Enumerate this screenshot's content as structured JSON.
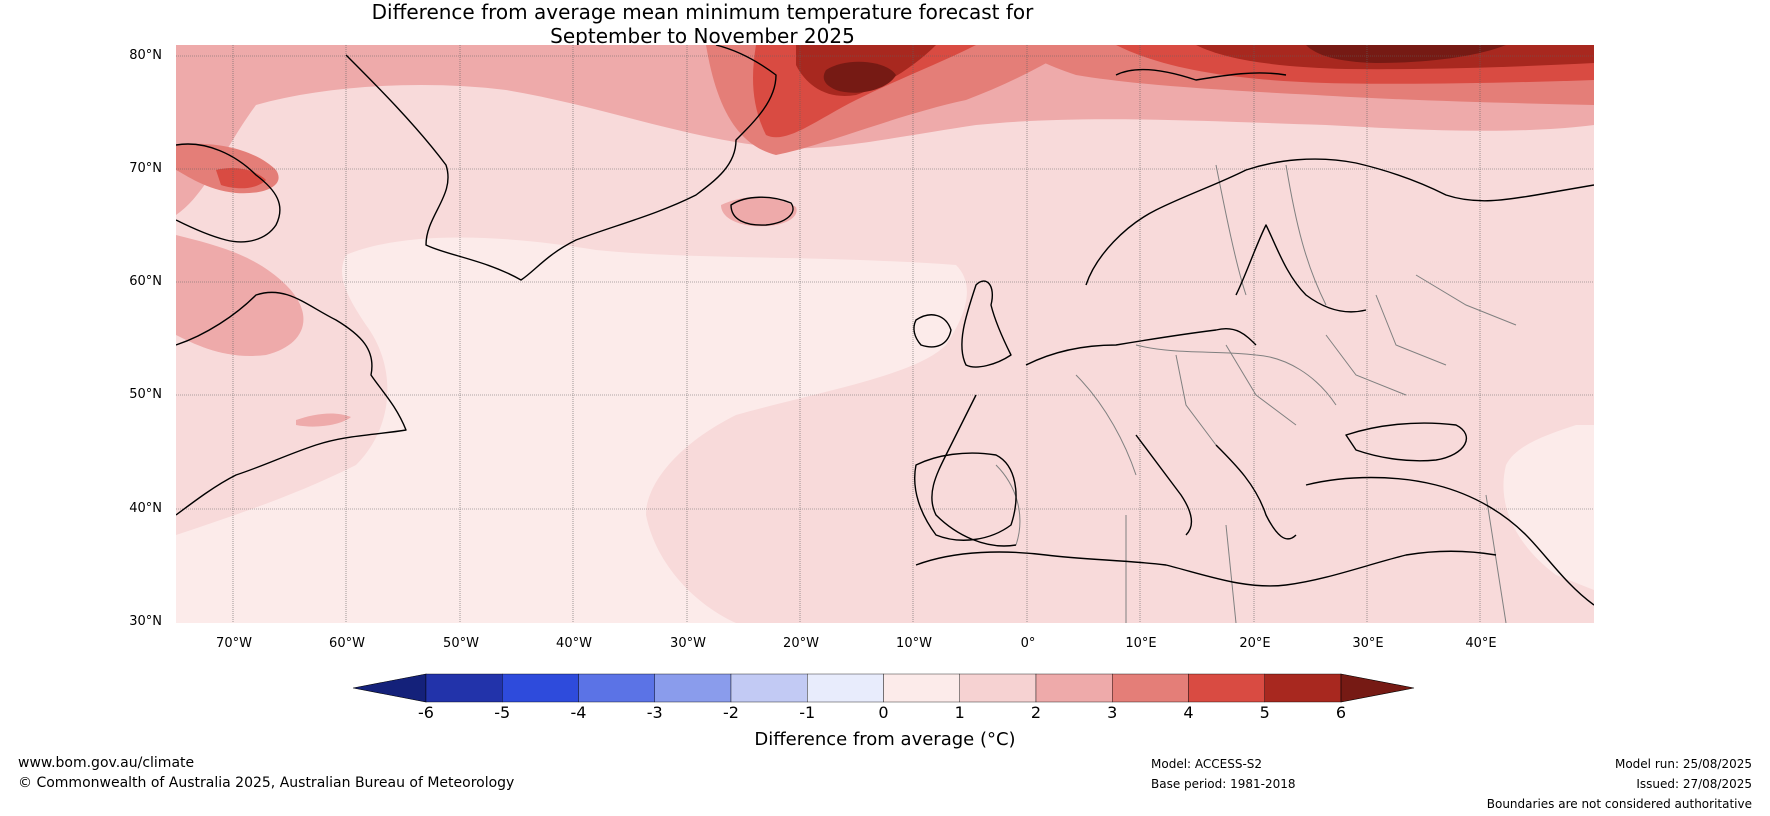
{
  "title": {
    "line1": "Difference from average mean minimum temperature forecast for",
    "line2": "September to November 2025"
  },
  "lat_labels": [
    "80°N",
    "70°N",
    "60°N",
    "50°N",
    "40°N",
    "30°N"
  ],
  "lon_labels": [
    "70°W",
    "60°W",
    "50°W",
    "40°W",
    "30°W",
    "20°W",
    "10°W",
    "0°",
    "10°E",
    "20°E",
    "30°E",
    "40°E"
  ],
  "colorbar": {
    "ticks": [
      "-6",
      "-5",
      "-4",
      "-3",
      "-2",
      "-1",
      "0",
      "1",
      "2",
      "3",
      "4",
      "5",
      "6"
    ],
    "colors": [
      "#14217a",
      "#2233aa",
      "#2e4bdc",
      "#5b73e6",
      "#8a9cec",
      "#c2caf4",
      "#e8ecfc",
      "#fcebea",
      "#f6d2d2",
      "#eeaaaa",
      "#e47e78",
      "#d94b42",
      "#a8281f",
      "#761a14"
    ],
    "label": "Difference from average (°C)"
  },
  "map_colors": {
    "base": "#f8dada",
    "level_0_1": "#fcebea",
    "level_1_2": "#f6d2d2",
    "level_2_3": "#eeaaaa",
    "level_3_4": "#e47e78",
    "level_4_5": "#d94b42",
    "level_5_6": "#a8281f",
    "level_6_plus": "#761a14",
    "coastline": "#000000",
    "borders": "#808080"
  },
  "footer": {
    "website": "www.bom.gov.au/climate",
    "copyright": "© Commonwealth of Australia 2025, Australian Bureau of Meteorology",
    "model": "Model: ACCESS-S2",
    "base_period": "Base period: 1981-2018",
    "model_run": "Model run: 25/08/2025",
    "issued": "Issued: 27/08/2025",
    "disclaimer": "Boundaries are not considered authoritative"
  }
}
